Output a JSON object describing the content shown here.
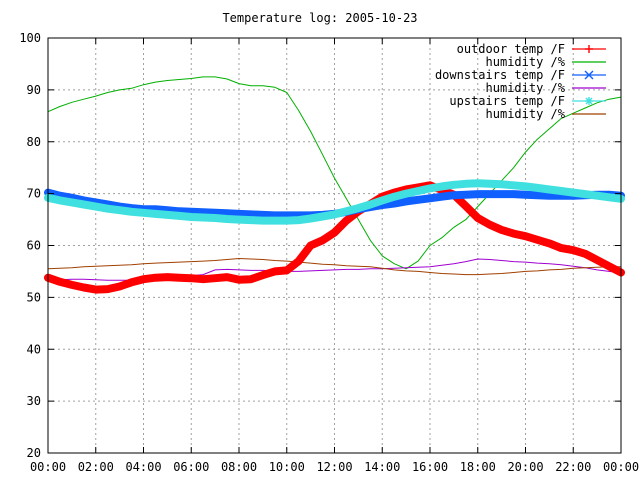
{
  "chart_data": {
    "type": "line",
    "title": "Temperature log: 2005-10-23",
    "xlabel": "",
    "ylabel": "",
    "xlim": [
      0,
      24
    ],
    "ylim": [
      20,
      100
    ],
    "x_ticks": [
      "00:00",
      "02:00",
      "04:00",
      "06:00",
      "08:00",
      "10:00",
      "12:00",
      "14:00",
      "16:00",
      "18:00",
      "20:00",
      "22:00",
      "00:00"
    ],
    "y_ticks": [
      "20",
      "30",
      "40",
      "50",
      "60",
      "70",
      "80",
      "90",
      "100"
    ],
    "grid": true,
    "legend_position": "top-right",
    "series": [
      {
        "name": "outdoor temp /F",
        "color": "#ff0000",
        "marker": "plus",
        "weight": "thick",
        "x": [
          0,
          0.5,
          1,
          1.5,
          2,
          2.5,
          3,
          3.5,
          4,
          4.5,
          5,
          5.5,
          6,
          6.5,
          7,
          7.5,
          8,
          8.5,
          9,
          9.5,
          10,
          10.5,
          11,
          11.5,
          12,
          12.5,
          13,
          13.5,
          14,
          14.5,
          15,
          15.5,
          16,
          16.5,
          17,
          17.5,
          18,
          18.5,
          19,
          19.5,
          20,
          20.5,
          21,
          21.5,
          22,
          22.5,
          23,
          23.5,
          24
        ],
        "y": [
          53.8,
          53.0,
          52.4,
          51.9,
          51.5,
          51.6,
          52.1,
          52.9,
          53.5,
          53.8,
          53.9,
          53.8,
          53.7,
          53.5,
          53.7,
          53.9,
          53.4,
          53.5,
          54.3,
          55.0,
          55.2,
          57.0,
          60.0,
          61.0,
          62.5,
          64.8,
          66.6,
          68.0,
          69.4,
          70.2,
          70.8,
          71.2,
          71.6,
          70.7,
          69.8,
          67.6,
          65.3,
          64.0,
          63.0,
          62.3,
          61.8,
          61.1,
          60.4,
          59.5,
          59.1,
          58.4,
          57.2,
          56.0,
          54.8
        ]
      },
      {
        "name": "humidity /%",
        "color": "#00b000",
        "marker": "none",
        "weight": "thin",
        "x": [
          0,
          0.5,
          1,
          1.5,
          2,
          2.5,
          3,
          3.5,
          4,
          4.5,
          5,
          5.5,
          6,
          6.5,
          7,
          7.5,
          8,
          8.5,
          9,
          9.5,
          10,
          10.5,
          11,
          11.5,
          12,
          12.5,
          13,
          13.5,
          14,
          14.5,
          15,
          15.5,
          16,
          16.5,
          17,
          17.5,
          18,
          18.5,
          19,
          19.5,
          20,
          20.5,
          21,
          21.5,
          22,
          22.5,
          23,
          23.5,
          24
        ],
        "y": [
          85.8,
          86.8,
          87.6,
          88.2,
          88.8,
          89.5,
          90.0,
          90.3,
          91.0,
          91.5,
          91.8,
          92.0,
          92.2,
          92.5,
          92.5,
          92.1,
          91.2,
          90.8,
          90.8,
          90.5,
          89.5,
          86.0,
          82.0,
          77.5,
          73.0,
          69.0,
          65.0,
          61.0,
          58.0,
          56.5,
          55.5,
          57.0,
          60.0,
          61.5,
          63.5,
          65.0,
          67.5,
          70.0,
          72.5,
          75.0,
          78.0,
          80.5,
          82.5,
          84.5,
          85.5,
          86.5,
          87.5,
          88.2,
          88.6
        ]
      },
      {
        "name": "downstairs temp /F",
        "color": "#1060ff",
        "marker": "cross",
        "weight": "thick",
        "x": [
          0,
          0.5,
          1,
          1.5,
          2,
          2.5,
          3,
          3.5,
          4,
          4.5,
          5,
          5.5,
          6,
          6.5,
          7,
          7.5,
          8,
          8.5,
          9,
          9.5,
          10,
          10.5,
          11,
          11.5,
          12,
          12.5,
          13,
          13.5,
          14,
          14.5,
          15,
          15.5,
          16,
          16.5,
          17,
          17.5,
          18,
          18.5,
          19,
          19.5,
          20,
          20.5,
          21,
          21.5,
          22,
          22.5,
          23,
          23.5,
          24
        ],
        "y": [
          70.2,
          69.6,
          69.2,
          68.7,
          68.3,
          67.9,
          67.5,
          67.2,
          67.0,
          67.0,
          66.8,
          66.6,
          66.5,
          66.4,
          66.3,
          66.2,
          66.1,
          66.0,
          65.9,
          65.8,
          65.8,
          65.8,
          65.8,
          65.9,
          66.1,
          66.5,
          67.0,
          67.4,
          67.8,
          68.1,
          68.5,
          68.8,
          69.1,
          69.4,
          69.7,
          69.8,
          69.9,
          69.9,
          69.9,
          69.9,
          69.8,
          69.7,
          69.6,
          69.6,
          69.6,
          69.7,
          69.8,
          69.8,
          69.6
        ]
      },
      {
        "name": "humidity /%",
        "color": "#a000d0",
        "marker": "none",
        "weight": "thin",
        "x": [
          0,
          0.5,
          1,
          1.5,
          2,
          2.5,
          3,
          3.5,
          4,
          4.5,
          5,
          5.5,
          6,
          6.5,
          7,
          7.5,
          8,
          8.5,
          9,
          9.5,
          10,
          10.5,
          11,
          11.5,
          12,
          12.5,
          13,
          13.5,
          14,
          14.5,
          15,
          15.5,
          16,
          16.5,
          17,
          17.5,
          18,
          18.5,
          19,
          19.5,
          20,
          20.5,
          21,
          21.5,
          22,
          22.5,
          23,
          23.5,
          24
        ],
        "y": [
          53.3,
          53.4,
          53.5,
          53.5,
          53.4,
          53.3,
          53.3,
          53.3,
          53.4,
          53.5,
          53.7,
          54.0,
          54.2,
          54.4,
          55.3,
          55.4,
          55.3,
          55.2,
          55.2,
          55.1,
          55.0,
          55.0,
          55.1,
          55.2,
          55.3,
          55.4,
          55.4,
          55.5,
          55.5,
          55.6,
          55.7,
          55.8,
          55.9,
          56.2,
          56.5,
          56.9,
          57.4,
          57.3,
          57.1,
          56.9,
          56.8,
          56.6,
          56.5,
          56.3,
          56.0,
          55.7,
          55.3,
          55.0,
          54.7
        ]
      },
      {
        "name": "upstairs temp /F",
        "color": "#40e0e0",
        "marker": "star",
        "weight": "thick",
        "x": [
          0,
          0.5,
          1,
          1.5,
          2,
          2.5,
          3,
          3.5,
          4,
          4.5,
          5,
          5.5,
          6,
          6.5,
          7,
          7.5,
          8,
          8.5,
          9,
          9.5,
          10,
          10.5,
          11,
          11.5,
          12,
          12.5,
          13,
          13.5,
          14,
          14.5,
          15,
          15.5,
          16,
          16.5,
          17,
          17.5,
          18,
          18.5,
          19,
          19.5,
          20,
          20.5,
          21,
          21.5,
          22,
          22.5,
          23,
          23.5,
          24
        ],
        "y": [
          69.2,
          68.7,
          68.3,
          67.9,
          67.5,
          67.1,
          66.8,
          66.5,
          66.3,
          66.1,
          65.9,
          65.7,
          65.5,
          65.4,
          65.3,
          65.1,
          65.0,
          64.9,
          64.8,
          64.8,
          64.8,
          64.9,
          65.2,
          65.6,
          66.0,
          66.6,
          67.2,
          67.9,
          68.7,
          69.4,
          70.0,
          70.5,
          71.0,
          71.4,
          71.7,
          71.9,
          72.0,
          71.9,
          71.8,
          71.6,
          71.4,
          71.1,
          70.8,
          70.5,
          70.2,
          69.9,
          69.6,
          69.3,
          69.0
        ]
      },
      {
        "name": "humidity /%",
        "color": "#a04000",
        "marker": "none",
        "weight": "thin",
        "x": [
          0,
          0.5,
          1,
          1.5,
          2,
          2.5,
          3,
          3.5,
          4,
          4.5,
          5,
          5.5,
          6,
          6.5,
          7,
          7.5,
          8,
          8.5,
          9,
          9.5,
          10,
          10.5,
          11,
          11.5,
          12,
          12.5,
          13,
          13.5,
          14,
          14.5,
          15,
          15.5,
          16,
          16.5,
          17,
          17.5,
          18,
          18.5,
          19,
          19.5,
          20,
          20.5,
          21,
          21.5,
          22,
          22.5,
          23,
          23.5,
          24
        ],
        "y": [
          55.5,
          55.6,
          55.7,
          55.9,
          56.0,
          56.1,
          56.2,
          56.3,
          56.5,
          56.6,
          56.7,
          56.8,
          56.9,
          57.0,
          57.1,
          57.3,
          57.5,
          57.4,
          57.3,
          57.1,
          57.0,
          56.8,
          56.6,
          56.4,
          56.3,
          56.1,
          56.0,
          55.9,
          55.6,
          55.3,
          55.1,
          55.0,
          54.8,
          54.6,
          54.5,
          54.4,
          54.4,
          54.5,
          54.6,
          54.8,
          55.0,
          55.1,
          55.3,
          55.4,
          55.6,
          55.7,
          55.8,
          55.9,
          55.9
        ]
      }
    ]
  }
}
